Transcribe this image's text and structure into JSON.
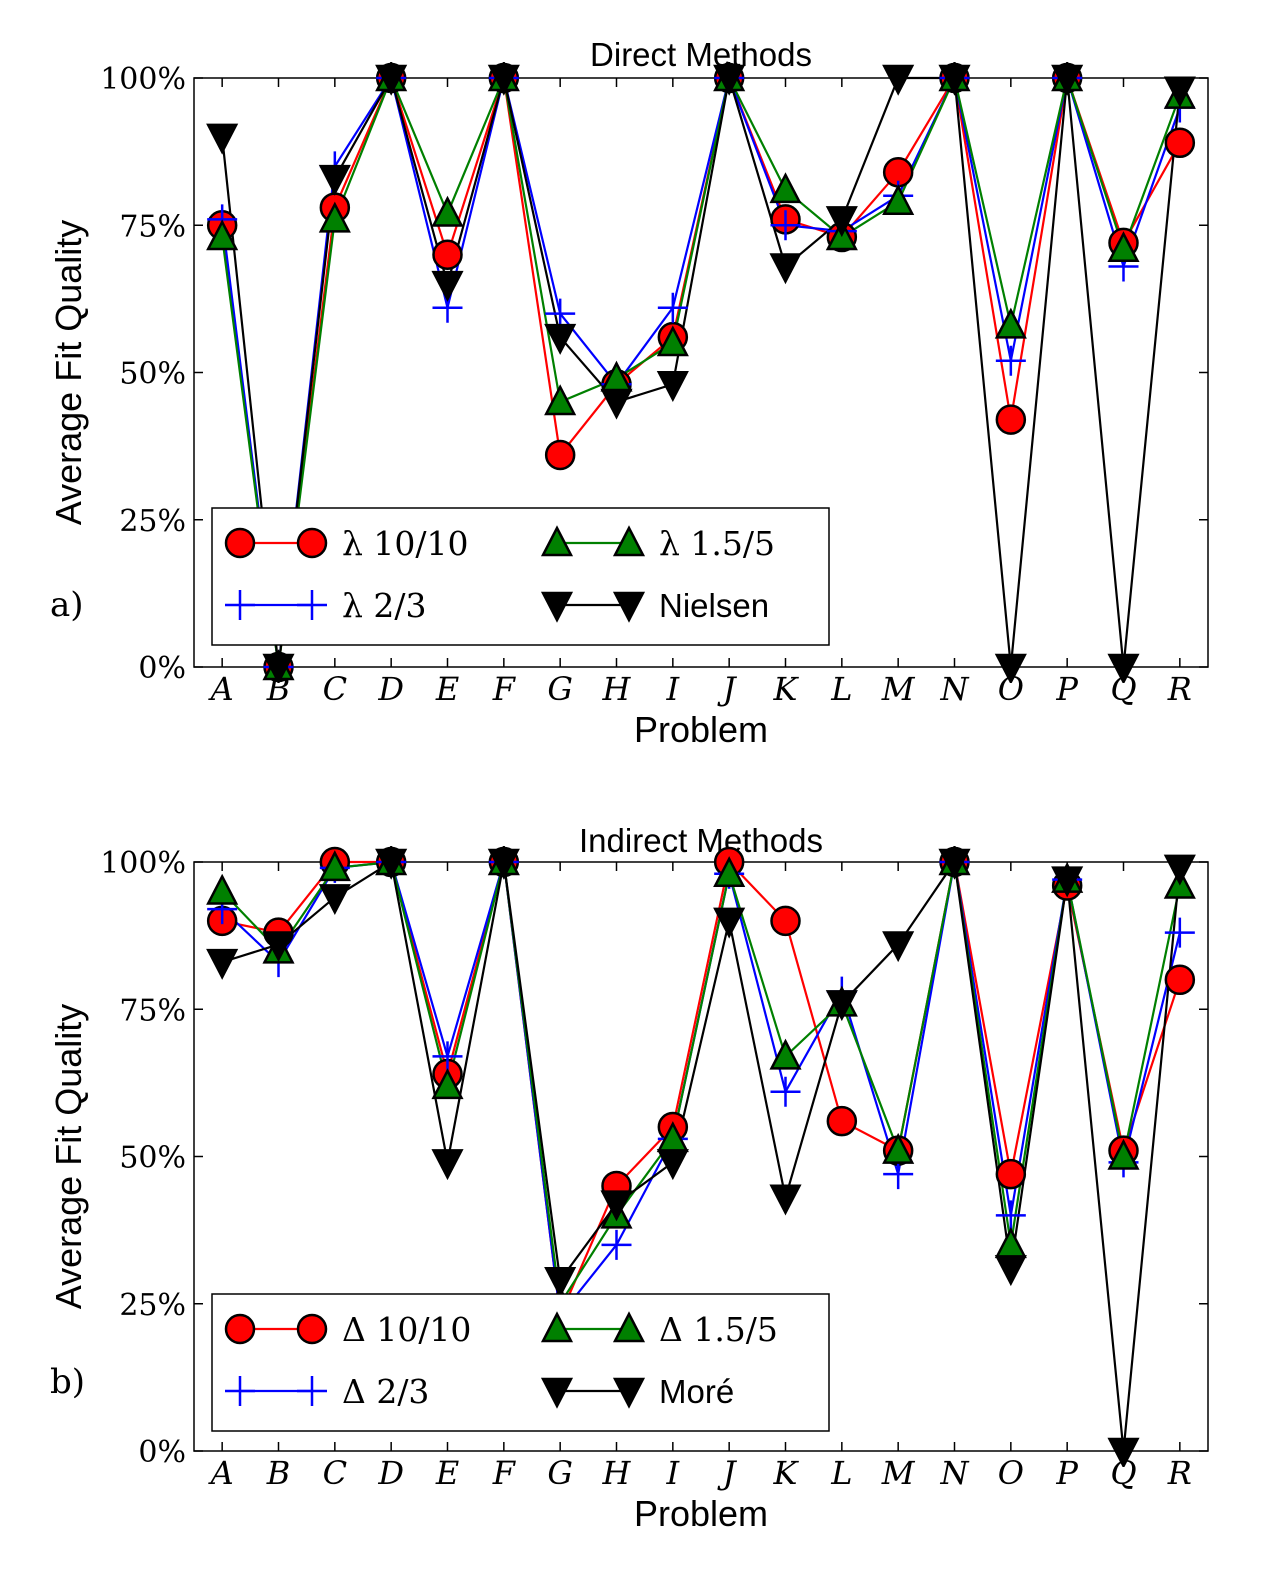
{
  "chart_data": [
    {
      "type": "line",
      "panel_label": "a)",
      "title": "Direct Methods",
      "xlabel": "Problem",
      "ylabel": "Average Fit Quality",
      "ylim": [
        0,
        100
      ],
      "yticks": [
        "0%",
        "25%",
        "50%",
        "75%",
        "100%"
      ],
      "categories": [
        "A",
        "B",
        "C",
        "D",
        "E",
        "F",
        "G",
        "H",
        "I",
        "J",
        "K",
        "L",
        "M",
        "N",
        "O",
        "P",
        "Q",
        "R"
      ],
      "legend_position": "lower-left",
      "series": [
        {
          "name": "λ 10/10",
          "marker": "circle",
          "color": "#ff0000",
          "values": [
            75,
            0,
            78,
            100,
            70,
            100,
            36,
            48,
            56,
            100,
            76,
            73,
            84,
            100,
            42,
            100,
            72,
            89
          ]
        },
        {
          "name": "λ 2/3",
          "marker": "plus",
          "color": "#0000ff",
          "values": [
            76,
            0,
            85,
            100,
            61,
            100,
            60,
            48,
            61,
            100,
            75,
            74,
            80,
            100,
            52,
            100,
            68,
            95
          ]
        },
        {
          "name": "λ 1.5/5",
          "marker": "triangle-up",
          "color": "#008000",
          "values": [
            73,
            0,
            76,
            100,
            77,
            100,
            45,
            49,
            55,
            100,
            81,
            73,
            79,
            100,
            58,
            100,
            71,
            97
          ]
        },
        {
          "name": "Nielsen",
          "marker": "triangle-down",
          "color": "#000000",
          "values": [
            90,
            0,
            83,
            100,
            65,
            100,
            56,
            45,
            48,
            100,
            68,
            76,
            100,
            100,
            0,
            100,
            0,
            98
          ]
        }
      ]
    },
    {
      "type": "line",
      "panel_label": "b)",
      "title": "Indirect Methods",
      "xlabel": "Problem",
      "ylabel": "Average Fit Quality",
      "ylim": [
        0,
        100
      ],
      "yticks": [
        "0%",
        "25%",
        "50%",
        "75%",
        "100%"
      ],
      "categories": [
        "A",
        "B",
        "C",
        "D",
        "E",
        "F",
        "G",
        "H",
        "I",
        "J",
        "K",
        "L",
        "M",
        "N",
        "O",
        "P",
        "Q",
        "R"
      ],
      "legend_position": "lower-left",
      "series": [
        {
          "name": "Δ 10/10",
          "marker": "circle",
          "color": "#ff0000",
          "values": [
            90,
            88,
            100,
            100,
            64,
            100,
            23,
            45,
            55,
            100,
            90,
            56,
            51,
            100,
            47,
            96,
            51,
            80
          ]
        },
        {
          "name": "Δ 2/3",
          "marker": "plus",
          "color": "#0000ff",
          "values": [
            92,
            83,
            99,
            100,
            67,
            100,
            23,
            35,
            53,
            98,
            61,
            78,
            47,
            100,
            40,
            97,
            49,
            88
          ]
        },
        {
          "name": "Δ 1.5/5",
          "marker": "triangle-up",
          "color": "#008000",
          "values": [
            95,
            85,
            99,
            100,
            62,
            100,
            25,
            40,
            53,
            98,
            67,
            76,
            51,
            100,
            35,
            97,
            50,
            96
          ]
        },
        {
          "name": "Moré",
          "marker": "triangle-down",
          "color": "#000000",
          "values": [
            83,
            86,
            94,
            100,
            49,
            100,
            29,
            42,
            49,
            90,
            43,
            76,
            86,
            100,
            31,
            97,
            0,
            99
          ]
        }
      ]
    }
  ]
}
